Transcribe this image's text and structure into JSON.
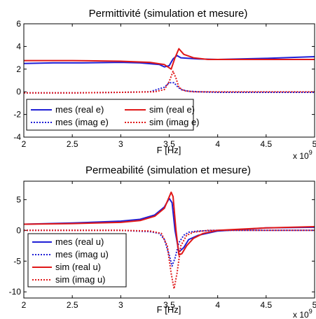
{
  "chart_data": [
    {
      "type": "line",
      "title": "Permittivité (simulation et mesure)",
      "xlabel": "F [Hz]",
      "x_multiplier_label": "x 10",
      "x_multiplier_exponent": "9",
      "xlim": [
        2,
        5
      ],
      "ylim": [
        -4,
        6
      ],
      "xticks": [
        "2",
        "2.5",
        "3",
        "3.5",
        "4",
        "4.5",
        "5"
      ],
      "yticks": [
        "-4",
        "-2",
        "0",
        "2",
        "4",
        "6"
      ],
      "xtick_values": [
        2,
        2.5,
        3,
        3.5,
        4,
        4.5,
        5
      ],
      "ytick_values": [
        -4,
        -2,
        0,
        2,
        4,
        6
      ],
      "legend": {
        "placement": "bottom-left",
        "columns": 2
      },
      "series": [
        {
          "name": "mes (real e)",
          "color": "#1f1fd6",
          "dash": "solid",
          "x": [
            2.0,
            2.3,
            2.6,
            3.0,
            3.2,
            3.4,
            3.45,
            3.5,
            3.54,
            3.58,
            3.62,
            3.7,
            3.8,
            4.0,
            4.5,
            5.0
          ],
          "y": [
            2.5,
            2.55,
            2.55,
            2.6,
            2.55,
            2.4,
            2.2,
            2.3,
            2.9,
            3.2,
            3.0,
            2.95,
            2.9,
            2.85,
            2.95,
            3.1
          ]
        },
        {
          "name": "mes (imag e)",
          "color": "#1f1fd6",
          "dash": "dotted",
          "x": [
            2.0,
            2.5,
            3.0,
            3.3,
            3.45,
            3.5,
            3.55,
            3.58,
            3.62,
            3.7,
            3.8,
            4.0,
            4.5,
            5.0
          ],
          "y": [
            -0.1,
            -0.1,
            -0.05,
            0.0,
            0.4,
            0.8,
            0.8,
            0.5,
            0.2,
            0.05,
            0.0,
            -0.05,
            -0.05,
            -0.05
          ]
        },
        {
          "name": "sim (real e)",
          "color": "#e01818",
          "dash": "solid",
          "x": [
            2.0,
            2.5,
            3.0,
            3.3,
            3.45,
            3.52,
            3.56,
            3.6,
            3.65,
            3.75,
            3.9,
            4.2,
            4.5,
            5.0
          ],
          "y": [
            2.75,
            2.75,
            2.7,
            2.6,
            2.4,
            2.0,
            3.0,
            3.8,
            3.3,
            3.0,
            2.85,
            2.85,
            2.85,
            2.85
          ]
        },
        {
          "name": "sim (imag e)",
          "color": "#e01818",
          "dash": "dotted",
          "x": [
            2.0,
            2.5,
            3.0,
            3.35,
            3.45,
            3.5,
            3.54,
            3.57,
            3.6,
            3.65,
            3.75,
            4.0,
            4.5,
            5.0
          ],
          "y": [
            -0.1,
            -0.1,
            -0.05,
            0.0,
            0.2,
            0.9,
            1.8,
            1.2,
            0.4,
            0.1,
            0.0,
            0.0,
            0.0,
            0.0
          ]
        }
      ],
      "legend_rows": [
        {
          "label_left": "mes (real e)",
          "label_right": "sim (real e)"
        },
        {
          "label_left": "mes (imag e)",
          "label_right": "sim (imag e)"
        }
      ]
    },
    {
      "type": "line",
      "title": "Permeabilité (simulation et mesure)",
      "xlabel": "F [Hz]",
      "x_multiplier_label": "x 10",
      "x_multiplier_exponent": "9",
      "xlim": [
        2,
        5
      ],
      "ylim": [
        -11,
        8
      ],
      "xticks": [
        "2",
        "2.5",
        "3",
        "3.5",
        "4",
        "4.5",
        "5"
      ],
      "yticks": [
        "-10",
        "-5",
        "0",
        "5"
      ],
      "xtick_values": [
        2,
        2.5,
        3,
        3.5,
        4,
        4.5,
        5
      ],
      "ytick_values": [
        -10,
        -5,
        0,
        5
      ],
      "legend": {
        "placement": "bottom-left",
        "columns": 1
      },
      "series": [
        {
          "name": "mes (real u)",
          "color": "#1f1fd6",
          "dash": "solid",
          "x": [
            2.0,
            2.5,
            3.0,
            3.2,
            3.35,
            3.45,
            3.5,
            3.53,
            3.56,
            3.6,
            3.65,
            3.7,
            3.8,
            4.0,
            4.5,
            5.0
          ],
          "y": [
            1.0,
            1.2,
            1.5,
            1.8,
            2.5,
            3.8,
            5.2,
            4.5,
            0.0,
            -3.5,
            -2.8,
            -1.5,
            -0.8,
            -0.1,
            0.4,
            0.5
          ]
        },
        {
          "name": "mes (imag u)",
          "color": "#1f1fd6",
          "dash": "dotted",
          "x": [
            2.0,
            2.5,
            3.0,
            3.3,
            3.4,
            3.45,
            3.5,
            3.53,
            3.56,
            3.6,
            3.65,
            3.7,
            3.8,
            4.0,
            4.5,
            5.0
          ],
          "y": [
            0.0,
            0.0,
            0.0,
            -0.2,
            -0.5,
            -1.5,
            -4.0,
            -5.8,
            -4.5,
            -2.0,
            -0.8,
            -0.3,
            -0.1,
            0.0,
            0.0,
            0.0
          ]
        },
        {
          "name": "sim (real u)",
          "color": "#e01818",
          "dash": "solid",
          "x": [
            2.0,
            2.5,
            3.0,
            3.2,
            3.35,
            3.45,
            3.52,
            3.54,
            3.57,
            3.6,
            3.63,
            3.68,
            3.75,
            3.85,
            4.0,
            4.5,
            5.0
          ],
          "y": [
            1.0,
            1.1,
            1.3,
            1.6,
            2.3,
            3.6,
            6.2,
            5.5,
            0.0,
            -4.0,
            -3.8,
            -2.5,
            -1.3,
            -0.5,
            0.0,
            0.4,
            0.6
          ]
        },
        {
          "name": "sim (imag u)",
          "color": "#e01818",
          "dash": "dotted",
          "x": [
            2.0,
            2.5,
            3.0,
            3.3,
            3.42,
            3.48,
            3.52,
            3.55,
            3.58,
            3.62,
            3.68,
            3.75,
            3.9,
            4.2,
            5.0
          ],
          "y": [
            0.0,
            0.0,
            0.0,
            -0.1,
            -0.5,
            -2.5,
            -7.0,
            -9.5,
            -7.0,
            -2.5,
            -0.8,
            -0.3,
            0.0,
            0.0,
            0.0
          ]
        }
      ],
      "legend_rows": [
        {
          "label": "mes (real u)"
        },
        {
          "label": "mes (imag u)"
        },
        {
          "label": "sim (real u)"
        },
        {
          "label": "sim (imag u)"
        }
      ]
    }
  ]
}
